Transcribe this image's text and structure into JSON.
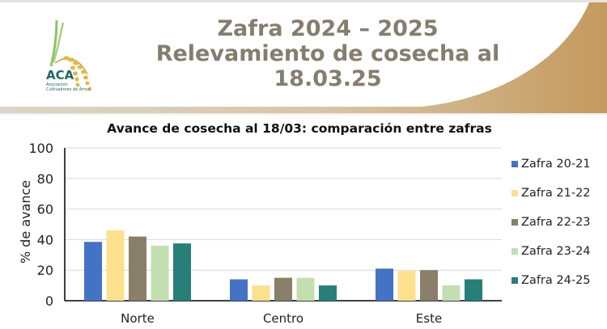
{
  "header": {
    "title_line1": "Zafra 2024 – 2025",
    "title_line2": "Relevamiento de cosecha al",
    "title_line3": "18.03.25",
    "logo": {
      "acronym": "ACA",
      "line1": "Asociación",
      "line2": "Cultivadores de Arroz",
      "icon": "rice-plant-icon"
    }
  },
  "colors": {
    "title": "#857d6e",
    "band": "#c49a5e",
    "series": [
      "#4472c4",
      "#fde08c",
      "#8a7f69",
      "#c3dfb0",
      "#267f79"
    ]
  },
  "chart_data": {
    "type": "bar",
    "title": "Avance de cosecha al 18/03: comparación entre zafras",
    "xlabel": "",
    "ylabel": "% de avance",
    "ylim": [
      0,
      100
    ],
    "yticks": [
      0,
      20,
      40,
      60,
      80,
      100
    ],
    "grid": true,
    "legend_position": "right",
    "categories": [
      "Norte",
      "Centro",
      "Este"
    ],
    "series": [
      {
        "name": "Zafra 20-21",
        "values": [
          38.5,
          14,
          21
        ]
      },
      {
        "name": "Zafra 21-22",
        "values": [
          46,
          10,
          19.5
        ]
      },
      {
        "name": "Zafra 22-23",
        "values": [
          42,
          15,
          20
        ]
      },
      {
        "name": "Zafra 23-24",
        "values": [
          36,
          15,
          10
        ]
      },
      {
        "name": "Zafra 24-25",
        "values": [
          37.5,
          10,
          14
        ]
      }
    ]
  }
}
